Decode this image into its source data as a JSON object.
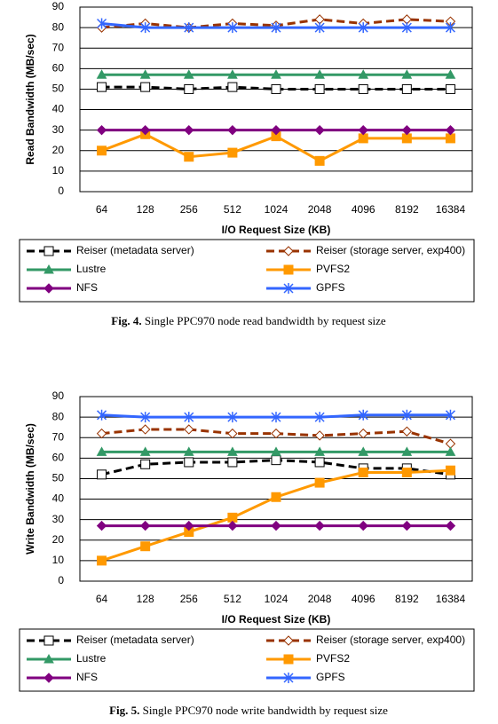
{
  "chart_data": [
    {
      "type": "line",
      "ylabel": "Read Bandwidth (MB/sec)",
      "xlabel": "I/O Request Size (KB)",
      "categories": [
        "64",
        "128",
        "256",
        "512",
        "1024",
        "2048",
        "4096",
        "8192",
        "16384"
      ],
      "ylim": [
        0,
        90
      ],
      "yticks": [
        0,
        10,
        20,
        30,
        40,
        50,
        60,
        70,
        80,
        90
      ],
      "grid": true,
      "series": [
        {
          "name": "Reiser (metadata server)",
          "color": "#000000",
          "dashed": true,
          "marker": "square",
          "marker_filled": false,
          "values": [
            51,
            51,
            50,
            51,
            50,
            50,
            50,
            50,
            50
          ]
        },
        {
          "name": "Reiser (storage server, exp400)",
          "color": "#993300",
          "dashed": true,
          "marker": "diamond",
          "marker_filled": false,
          "values": [
            80,
            82,
            80,
            82,
            81,
            84,
            82,
            84,
            83
          ]
        },
        {
          "name": "Lustre",
          "color": "#339966",
          "dashed": false,
          "marker": "triangle",
          "marker_filled": true,
          "values": [
            57,
            57,
            57,
            57,
            57,
            57,
            57,
            57,
            57
          ]
        },
        {
          "name": "PVFS2",
          "color": "#ff9900",
          "dashed": false,
          "marker": "square",
          "marker_filled": true,
          "values": [
            20,
            28,
            17,
            19,
            27,
            15,
            26,
            26,
            26
          ]
        },
        {
          "name": "NFS",
          "color": "#800080",
          "dashed": false,
          "marker": "diamond",
          "marker_filled": true,
          "values": [
            30,
            30,
            30,
            30,
            30,
            30,
            30,
            30,
            30
          ]
        },
        {
          "name": "GPFS",
          "color": "#3366ff",
          "dashed": false,
          "marker": "star",
          "marker_filled": false,
          "values": [
            82,
            80,
            80,
            80,
            80,
            80,
            80,
            80,
            80
          ]
        }
      ],
      "caption_label": "Fig. 4.",
      "caption": "Single PPC970 node read bandwidth by request size"
    },
    {
      "type": "line",
      "ylabel": "Write Bandwidth (MB/sec)",
      "xlabel": "I/O Request Size (KB)",
      "categories": [
        "64",
        "128",
        "256",
        "512",
        "1024",
        "2048",
        "4096",
        "8192",
        "16384"
      ],
      "ylim": [
        0,
        90
      ],
      "yticks": [
        0,
        10,
        20,
        30,
        40,
        50,
        60,
        70,
        80,
        90
      ],
      "grid": true,
      "series": [
        {
          "name": "Reiser (metadata server)",
          "color": "#000000",
          "dashed": true,
          "marker": "square",
          "marker_filled": false,
          "values": [
            52,
            57,
            58,
            58,
            59,
            58,
            55,
            55,
            52
          ]
        },
        {
          "name": "Reiser (storage server, exp400)",
          "color": "#993300",
          "dashed": true,
          "marker": "diamond",
          "marker_filled": false,
          "values": [
            72,
            74,
            74,
            72,
            72,
            71,
            72,
            73,
            67
          ]
        },
        {
          "name": "Lustre",
          "color": "#339966",
          "dashed": false,
          "marker": "triangle",
          "marker_filled": true,
          "values": [
            63,
            63,
            63,
            63,
            63,
            63,
            63,
            63,
            63
          ]
        },
        {
          "name": "PVFS2",
          "color": "#ff9900",
          "dashed": false,
          "marker": "square",
          "marker_filled": true,
          "values": [
            10,
            17,
            24,
            31,
            41,
            48,
            53,
            53,
            54
          ]
        },
        {
          "name": "NFS",
          "color": "#800080",
          "dashed": false,
          "marker": "diamond",
          "marker_filled": true,
          "values": [
            27,
            27,
            27,
            27,
            27,
            27,
            27,
            27,
            27
          ]
        },
        {
          "name": "GPFS",
          "color": "#3366ff",
          "dashed": false,
          "marker": "star",
          "marker_filled": false,
          "values": [
            81,
            80,
            80,
            80,
            80,
            80,
            81,
            81,
            81
          ]
        }
      ],
      "caption_label": "Fig. 5.",
      "caption": "Single PPC970 node write bandwidth by request size"
    }
  ]
}
